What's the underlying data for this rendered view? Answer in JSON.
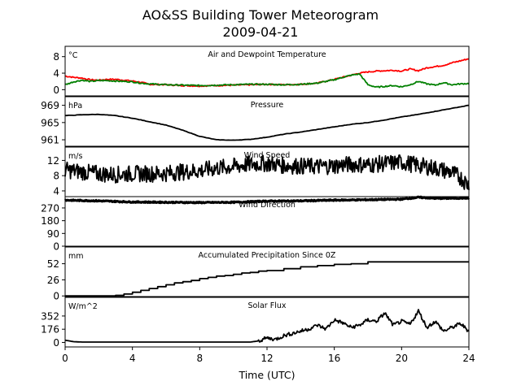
{
  "title": "AO&SS Building Tower Meteorogram",
  "subtitle": "2009-04-21",
  "xlabel": "Time (UTC)",
  "xticks": [
    "0",
    "4",
    "8",
    "12",
    "16",
    "20",
    "24"
  ],
  "chart_data": [
    {
      "type": "line",
      "title": "Air and Dewpoint Temperature",
      "unit": "°C",
      "ylim": [
        -1.5,
        10.5
      ],
      "yticks": [
        0,
        4,
        8
      ],
      "xlim": [
        0,
        24
      ],
      "series": [
        {
          "color": "#ff0000",
          "x": [
            0,
            0.5,
            1,
            1.5,
            2,
            2.5,
            3,
            3.5,
            4,
            4.5,
            5,
            6,
            7,
            8,
            9,
            10,
            11,
            12,
            13,
            14,
            15,
            16,
            16.5,
            17,
            17.5,
            18,
            18.5,
            19,
            19.5,
            20,
            20.5,
            21,
            21.5,
            22,
            22.5,
            23,
            23.5,
            24
          ],
          "y": [
            3.3,
            3.0,
            2.8,
            2.4,
            2.3,
            2.5,
            2.5,
            2.3,
            2.1,
            1.8,
            1.3,
            1.2,
            1.0,
            0.9,
            1.0,
            1.1,
            1.2,
            1.3,
            1.2,
            1.3,
            1.6,
            2.5,
            3.0,
            3.5,
            4.0,
            4.3,
            4.5,
            4.6,
            4.7,
            4.5,
            5.0,
            4.6,
            5.3,
            5.6,
            5.9,
            6.5,
            7.0,
            7.5
          ]
        },
        {
          "color": "#008000",
          "x": [
            0,
            0.5,
            1,
            1.5,
            2,
            2.5,
            3,
            3.5,
            4,
            4.5,
            5,
            6,
            7,
            8,
            9,
            10,
            11,
            12,
            13,
            14,
            15,
            16,
            16.5,
            17,
            17.5,
            18,
            18.5,
            19,
            19.5,
            20,
            20.5,
            21,
            21.5,
            22,
            22.5,
            23,
            23.5,
            24
          ],
          "y": [
            1.2,
            1.9,
            2.3,
            2.0,
            2.2,
            2.2,
            2.1,
            2.0,
            1.9,
            1.6,
            1.4,
            1.2,
            1.1,
            1.0,
            1.1,
            1.2,
            1.3,
            1.3,
            1.2,
            1.3,
            1.6,
            2.4,
            3.0,
            3.5,
            3.8,
            1.2,
            0.6,
            0.8,
            1.0,
            0.7,
            1.2,
            2.0,
            1.4,
            1.1,
            1.7,
            1.2,
            1.4,
            1.5
          ]
        }
      ]
    },
    {
      "type": "line",
      "title": "Pressure",
      "unit": "hPa",
      "ylim": [
        959.5,
        971.0
      ],
      "yticks": [
        961,
        965,
        969
      ],
      "xlim": [
        0,
        24
      ],
      "series": [
        {
          "color": "#000000",
          "x": [
            0,
            1,
            2,
            3,
            4,
            5,
            6,
            7,
            8,
            9,
            10,
            11,
            12,
            13,
            14,
            15,
            16,
            17,
            18,
            19,
            20,
            21,
            22,
            23,
            24
          ],
          "y": [
            966.6,
            966.8,
            966.9,
            966.6,
            966.0,
            965.2,
            964.4,
            963.2,
            961.8,
            961.0,
            960.9,
            961.1,
            961.6,
            962.3,
            962.8,
            963.4,
            964.0,
            964.6,
            965.0,
            965.6,
            966.3,
            966.9,
            967.6,
            968.3,
            969.0
          ]
        }
      ]
    },
    {
      "type": "line",
      "title": "Wind Speed",
      "unit": "m/s",
      "ylim": [
        2.5,
        15.5
      ],
      "yticks": [
        4,
        8,
        12
      ],
      "xlim": [
        0,
        24
      ],
      "series": [
        {
          "color": "#000000",
          "x": [
            0,
            1,
            2,
            3,
            4,
            5,
            6,
            7,
            8,
            9,
            10,
            11,
            12,
            13,
            14,
            15,
            16,
            17,
            18,
            19,
            20,
            21,
            22,
            23,
            23.5,
            24
          ],
          "y": [
            9.5,
            9.0,
            8.5,
            8.3,
            8.5,
            8.5,
            8.6,
            9.0,
            9.3,
            10.0,
            10.4,
            11.0,
            11.2,
            10.7,
            10.5,
            10.4,
            10.6,
            11.0,
            10.8,
            11.2,
            11.5,
            10.7,
            10.0,
            8.8,
            7.5,
            5.5
          ]
        }
      ]
    },
    {
      "type": "line",
      "title": "Wind Direction",
      "unit": "",
      "ylim": [
        0,
        350
      ],
      "yticks": [
        0,
        90,
        180,
        270
      ],
      "xlim": [
        0,
        24
      ],
      "series": [
        {
          "color": "#000000",
          "x": [
            0,
            2,
            4,
            6,
            8,
            10,
            12,
            14,
            16,
            18,
            20,
            21,
            22,
            24
          ],
          "y": [
            325,
            320,
            312,
            310,
            308,
            310,
            318,
            320,
            325,
            328,
            332,
            345,
            338,
            340
          ]
        }
      ]
    },
    {
      "type": "line",
      "title": "Accumulated Precipitation Since 0Z",
      "unit": "mm",
      "ylim": [
        -1,
        79
      ],
      "yticks": [
        0,
        26,
        52
      ],
      "xlim": [
        0,
        24
      ],
      "series": [
        {
          "color": "#000000",
          "x": [
            0,
            2.5,
            3,
            3.5,
            4,
            4.5,
            5,
            5.5,
            6,
            6.5,
            7,
            7.5,
            8,
            8.5,
            9,
            9.5,
            10,
            10.5,
            11,
            11.5,
            12,
            13,
            14,
            15,
            16,
            17,
            18,
            19,
            20,
            21,
            22,
            23,
            24
          ],
          "y": [
            0,
            0,
            1,
            3,
            6,
            9,
            12,
            15,
            18,
            21,
            23,
            25,
            28,
            30,
            32,
            33,
            35,
            37,
            38,
            40,
            41,
            44,
            47,
            49,
            51,
            52,
            55,
            55,
            55,
            55,
            55,
            55,
            55
          ]
        }
      ]
    },
    {
      "type": "line",
      "title": "Solar Flux",
      "unit": "W/m^2",
      "ylim": [
        -60,
        600
      ],
      "yticks": [
        0,
        176,
        352
      ],
      "xlim": [
        0,
        24
      ],
      "series": [
        {
          "color": "#000000",
          "x": [
            0,
            0.5,
            1,
            2,
            4,
            6,
            8,
            10,
            11,
            11.5,
            12,
            12.5,
            13,
            13.5,
            14,
            14.5,
            15,
            15.5,
            16,
            16.5,
            17,
            17.5,
            18,
            18.5,
            19,
            19.5,
            20,
            20.5,
            21,
            21.5,
            22,
            22.5,
            23,
            23.5,
            24
          ],
          "y": [
            30,
            10,
            5,
            5,
            5,
            5,
            5,
            5,
            5,
            20,
            60,
            40,
            90,
            120,
            150,
            180,
            230,
            180,
            300,
            260,
            200,
            230,
            300,
            280,
            390,
            230,
            280,
            240,
            420,
            200,
            280,
            150,
            200,
            250,
            150
          ]
        }
      ]
    }
  ]
}
